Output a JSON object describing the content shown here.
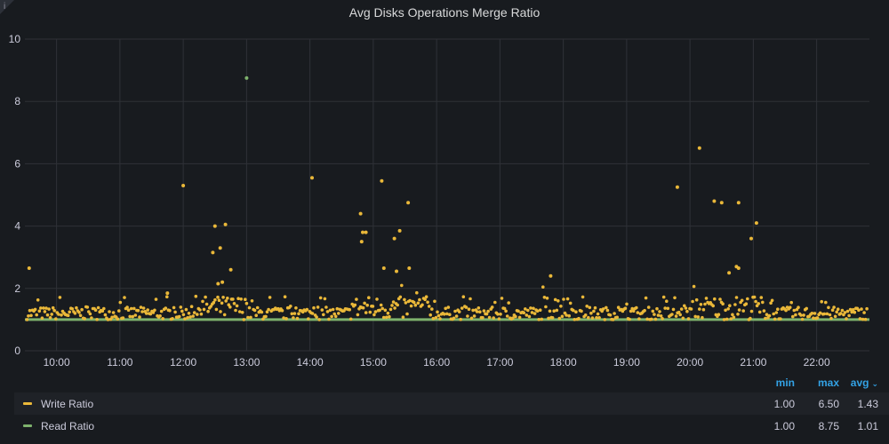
{
  "panel": {
    "title": "Avg Disks Operations Merge Ratio"
  },
  "legend": {
    "headers": {
      "min": "min",
      "max": "max",
      "avg": "avg"
    },
    "series": [
      {
        "name": "Write Ratio",
        "color": "#eab839",
        "min": "1.00",
        "max": "6.50",
        "avg": "1.43"
      },
      {
        "name": "Read Ratio",
        "color": "#7eb26d",
        "min": "1.00",
        "max": "8.75",
        "avg": "1.01"
      }
    ]
  },
  "chart_data": {
    "type": "scatter",
    "title": "Avg Disks Operations Merge Ratio",
    "xlim": [
      "09:30",
      "22:50"
    ],
    "ylim": [
      0,
      10
    ],
    "yticks": [
      0,
      2,
      4,
      6,
      8,
      10
    ],
    "xticks": [
      "10:00",
      "11:00",
      "12:00",
      "13:00",
      "14:00",
      "15:00",
      "16:00",
      "17:00",
      "18:00",
      "19:00",
      "20:00",
      "21:00",
      "22:00"
    ],
    "grid": true,
    "legend_position": "bottom",
    "series": [
      {
        "name": "Write Ratio",
        "color": "#eab839",
        "points": [
          [
            "09:34",
            2.65
          ],
          [
            "11:45",
            1.85
          ],
          [
            "12:00",
            5.3
          ],
          [
            "12:30",
            4.0
          ],
          [
            "12:33",
            2.15
          ],
          [
            "12:35",
            3.3
          ],
          [
            "12:37",
            2.2
          ],
          [
            "12:40",
            4.05
          ],
          [
            "12:45",
            2.6
          ],
          [
            "12:28",
            3.15
          ],
          [
            "14:02",
            5.55
          ],
          [
            "14:48",
            4.4
          ],
          [
            "14:49",
            3.5
          ],
          [
            "14:50",
            3.8
          ],
          [
            "14:53",
            3.8
          ],
          [
            "15:08",
            5.45
          ],
          [
            "15:20",
            3.6
          ],
          [
            "15:22",
            2.55
          ],
          [
            "15:25",
            3.85
          ],
          [
            "15:33",
            4.75
          ],
          [
            "15:10",
            2.65
          ],
          [
            "15:34",
            2.65
          ],
          [
            "17:48",
            2.4
          ],
          [
            "19:48",
            5.25
          ],
          [
            "20:09",
            6.5
          ],
          [
            "20:23",
            4.8
          ],
          [
            "20:30",
            4.75
          ],
          [
            "20:37",
            2.5
          ],
          [
            "20:46",
            4.75
          ],
          [
            "20:44",
            2.7
          ],
          [
            "20:46",
            2.65
          ],
          [
            "20:58",
            3.6
          ],
          [
            "21:03",
            4.1
          ]
        ]
      },
      {
        "name": "Read Ratio",
        "color": "#7eb26d",
        "points": [
          [
            "13:00",
            8.75
          ]
        ]
      }
    ]
  }
}
